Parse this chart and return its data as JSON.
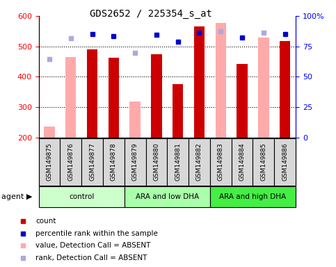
{
  "title": "GDS2652 / 225354_s_at",
  "samples": [
    "GSM149875",
    "GSM149876",
    "GSM149877",
    "GSM149878",
    "GSM149879",
    "GSM149880",
    "GSM149881",
    "GSM149882",
    "GSM149883",
    "GSM149884",
    "GSM149885",
    "GSM149886"
  ],
  "count_values": [
    null,
    null,
    490,
    462,
    null,
    475,
    376,
    565,
    null,
    441,
    null,
    518
  ],
  "absent_values": [
    237,
    464,
    null,
    null,
    318,
    null,
    null,
    null,
    577,
    null,
    530,
    null
  ],
  "percentile_present": [
    null,
    null,
    540,
    533,
    null,
    539,
    515,
    545,
    null,
    530,
    null,
    540
  ],
  "percentile_absent": [
    458,
    527,
    null,
    null,
    478,
    null,
    null,
    null,
    549,
    null,
    545,
    null
  ],
  "ylim_left": [
    200,
    600
  ],
  "ylim_right": [
    0,
    100
  ],
  "left_ticks": [
    200,
    300,
    400,
    500,
    600
  ],
  "right_ticks": [
    0,
    25,
    50,
    75,
    100
  ],
  "right_tick_labels": [
    "0",
    "25",
    "50",
    "75",
    "100%"
  ],
  "bar_color_present": "#cc0000",
  "bar_color_absent": "#ffaaaa",
  "dot_color_present": "#0000cc",
  "dot_color_absent": "#aaaadd",
  "bar_bottom": 200,
  "bar_width": 0.5,
  "group_defs": [
    [
      0,
      3,
      "control",
      "#ccffcc"
    ],
    [
      4,
      7,
      "ARA and low DHA",
      "#aaffaa"
    ],
    [
      8,
      11,
      "ARA and high DHA",
      "#44ee44"
    ]
  ],
  "legend_items": [
    [
      "#cc0000",
      "count"
    ],
    [
      "#0000cc",
      "percentile rank within the sample"
    ],
    [
      "#ffaaaa",
      "value, Detection Call = ABSENT"
    ],
    [
      "#aaaadd",
      "rank, Detection Call = ABSENT"
    ]
  ]
}
